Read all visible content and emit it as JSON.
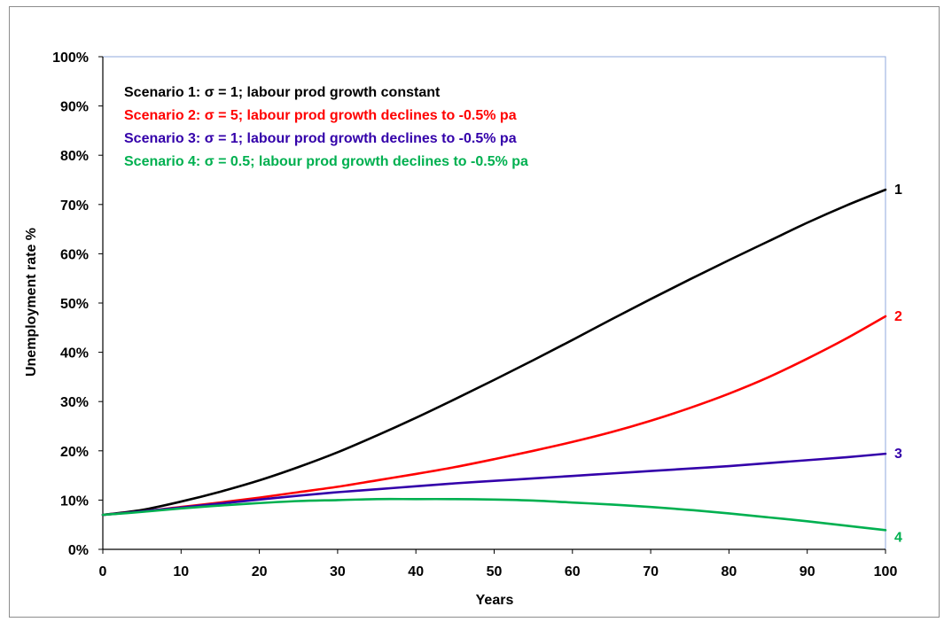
{
  "chart_data": {
    "type": "line",
    "title": "",
    "xlabel": "Years",
    "ylabel": "Unemployment rate %",
    "xlim": [
      0,
      100
    ],
    "ylim": [
      0,
      100
    ],
    "x_ticks": [
      "0",
      "10",
      "20",
      "30",
      "40",
      "50",
      "60",
      "70",
      "80",
      "90",
      "100"
    ],
    "y_ticks": [
      "0%",
      "10%",
      "20%",
      "30%",
      "40%",
      "50%",
      "60%",
      "70%",
      "80%",
      "90%",
      "100%"
    ],
    "grid": false,
    "legend_position": "top-left",
    "x": [
      0,
      5,
      10,
      15,
      20,
      25,
      30,
      35,
      40,
      45,
      50,
      55,
      60,
      65,
      70,
      75,
      80,
      85,
      90,
      95,
      100
    ],
    "series": [
      {
        "name": "Scenario 1: σ = 1; labour prod growth constant",
        "end_label": "1",
        "color": "#000000",
        "values": [
          7.0,
          8.0,
          9.7,
          11.7,
          14.0,
          16.7,
          19.7,
          23.1,
          26.7,
          30.5,
          34.4,
          38.4,
          42.5,
          46.7,
          50.8,
          54.8,
          58.7,
          62.5,
          66.3,
          69.8,
          73.0
        ]
      },
      {
        "name": "Scenario 2: σ = 5; labour prod growth declines to -0.5% pa",
        "end_label": "2",
        "color": "#ff0000",
        "values": [
          7.0,
          7.7,
          8.6,
          9.5,
          10.5,
          11.6,
          12.7,
          14.0,
          15.3,
          16.7,
          18.3,
          20.0,
          21.8,
          23.8,
          26.1,
          28.7,
          31.6,
          34.9,
          38.7,
          42.8,
          47.3
        ]
      },
      {
        "name": "Scenario 3: σ = 1; labour prod growth declines to -0.5% pa",
        "end_label": "3",
        "color": "#3300aa",
        "values": [
          7.0,
          7.7,
          8.5,
          9.3,
          10.1,
          10.9,
          11.6,
          12.2,
          12.8,
          13.4,
          13.9,
          14.4,
          14.9,
          15.4,
          15.9,
          16.4,
          16.9,
          17.5,
          18.1,
          18.7,
          19.4
        ]
      },
      {
        "name": "Scenario 4: σ = 0.5; labour prod growth declines to -0.5% pa",
        "end_label": "4",
        "color": "#00b050",
        "values": [
          7.0,
          7.6,
          8.3,
          8.9,
          9.4,
          9.8,
          10.0,
          10.2,
          10.2,
          10.2,
          10.1,
          9.9,
          9.5,
          9.1,
          8.6,
          8.0,
          7.3,
          6.5,
          5.7,
          4.8,
          3.9
        ]
      }
    ]
  }
}
